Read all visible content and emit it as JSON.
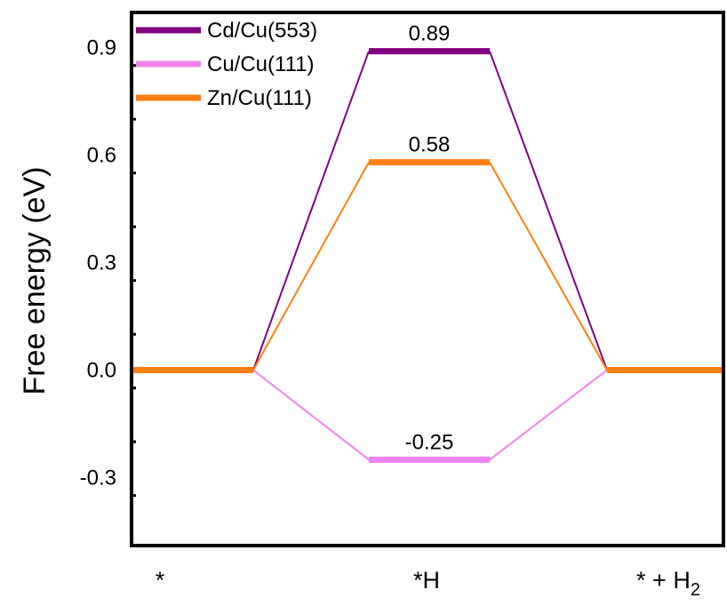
{
  "chart_data": {
    "type": "line",
    "title": "",
    "ylabel": "Free energy (eV)",
    "xlabel": "",
    "ylim": [
      -0.5,
      1.0
    ],
    "yticks": [
      {
        "value": -0.3,
        "label": "-0.3"
      },
      {
        "value": 0.0,
        "label": "0.0"
      },
      {
        "value": 0.3,
        "label": "0.3"
      },
      {
        "value": 0.6,
        "label": "0.6"
      },
      {
        "value": 0.9,
        "label": "0.9"
      }
    ],
    "categories": [
      {
        "label": "*",
        "sub": ""
      },
      {
        "label": "*H",
        "sub": ""
      },
      {
        "label": "* + H",
        "sub": "2"
      }
    ],
    "legend_position": "top-left",
    "grid": false,
    "series": [
      {
        "name": "Cd/Cu(553)",
        "color": "#800080",
        "values": [
          0.0,
          0.89,
          0.0
        ],
        "value_labels": [
          "",
          "0.89",
          ""
        ]
      },
      {
        "name": "Cu/Cu(111)",
        "color": "#ee82ee",
        "values": [
          0.0,
          -0.25,
          0.0
        ],
        "value_labels": [
          "",
          "-0.25",
          ""
        ]
      },
      {
        "name": "Zn/Cu(111)",
        "color": "#ff7f0e",
        "values": [
          0.0,
          0.58,
          0.0
        ],
        "value_labels": [
          "",
          "0.58",
          ""
        ]
      }
    ]
  }
}
